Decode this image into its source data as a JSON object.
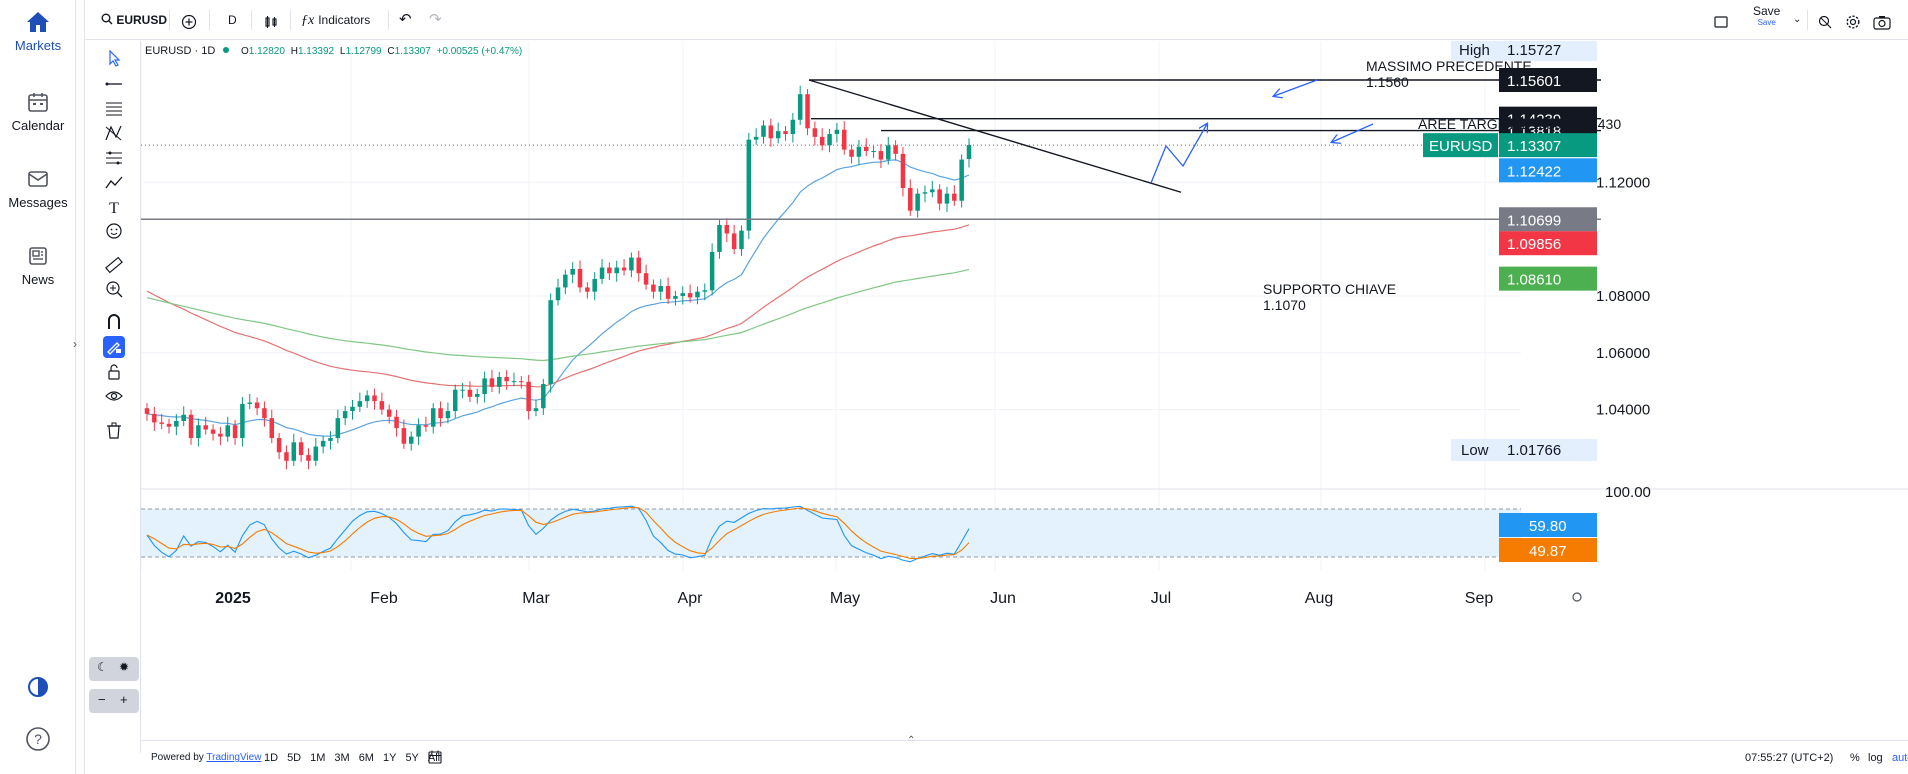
{
  "app_nav": {
    "items": [
      {
        "label": "Markets",
        "icon": "home-icon"
      },
      {
        "label": "Calendar",
        "icon": "calendar-icon"
      },
      {
        "label": "Messages",
        "icon": "mail-icon"
      },
      {
        "label": "News",
        "icon": "newspaper-icon"
      }
    ]
  },
  "toolbar": {
    "symbol": "EURUSD",
    "interval": "D",
    "indicators_label": "Indicators",
    "save_label": "Save",
    "save_sub": "Save"
  },
  "legend": {
    "title": "EURUSD · 1D",
    "open_label": "O",
    "open": "1.12820",
    "high_label": "H",
    "high": "1.13392",
    "low_label": "L",
    "low": "1.12799",
    "close_label": "C",
    "close": "1.13307",
    "change": "+0.00525 (+0.47%)"
  },
  "annotations": {
    "massimo_title": "MASSIMO PRECEDENTE",
    "massimo_value": "1.1560",
    "target_label": "AREE TARGET 1.1380  - 1.1430",
    "supporto_title": "SUPPORTO CHIAVE",
    "supporto_value": "1.1070"
  },
  "price_axis": {
    "ticks": [
      "1.12000",
      "1.08000",
      "1.06000",
      "1.04000"
    ],
    "high_label": "High",
    "high_value": "1.15727",
    "low_label": "Low",
    "low_value": "1.01766",
    "badges": [
      {
        "text": "1.15601",
        "bg": "#131722",
        "fg": "#ffffff"
      },
      {
        "text": "1.14239",
        "bg": "#131722",
        "fg": "#ffffff"
      },
      {
        "text": "1.13818",
        "bg": "#131722",
        "fg": "#ffffff"
      },
      {
        "text": "1.13307",
        "bg": "#089981",
        "fg": "#ffffff"
      },
      {
        "text": "1.12422",
        "bg": "#2196f3",
        "fg": "#ffffff"
      },
      {
        "text": "1.10699",
        "bg": "#787b86",
        "fg": "#ffffff"
      },
      {
        "text": "1.09856",
        "bg": "#f23645",
        "fg": "#ffffff"
      },
      {
        "text": "1.08610",
        "bg": "#4caf50",
        "fg": "#ffffff"
      }
    ],
    "symbol_badge": "EURUSD"
  },
  "oscillator": {
    "top_tick": "100.00",
    "k_value": "59.80",
    "d_value": "49.87",
    "k_color": "#2196f3",
    "d_color": "#f57c00"
  },
  "time_axis": {
    "labels": [
      "2025",
      "Feb",
      "Mar",
      "Apr",
      "May",
      "Jun",
      "Jul",
      "Aug",
      "Sep"
    ]
  },
  "bottom_bar": {
    "powered_prefix": "Powered by ",
    "powered_link": "TradingView",
    "ranges": [
      "1D",
      "5D",
      "1M",
      "3M",
      "6M",
      "1Y",
      "5Y",
      "All"
    ],
    "clock": "07:55:27 (UTC+2)",
    "percent": "%",
    "log": "log",
    "auto": "auto"
  },
  "colors": {
    "up": "#089981",
    "down": "#f23645",
    "ma_fast": "#5ba4e0",
    "ma_mid": "#e57373",
    "ma_slow": "#81c784",
    "accent": "#2962ff"
  },
  "chart_data": {
    "type": "candlestick",
    "symbol": "EURUSD",
    "interval": "1D",
    "ylim": [
      1.0,
      1.16
    ],
    "ohlc_last": {
      "open": 1.1282,
      "high": 1.13392,
      "low": 1.12799,
      "close": 1.13307
    },
    "closes": [
      1.0385,
      1.0355,
      1.035,
      1.034,
      1.036,
      1.0382,
      1.03,
      1.0345,
      1.033,
      1.0315,
      1.0305,
      1.0345,
      1.03,
      1.042,
      1.0425,
      1.0405,
      1.037,
      1.03,
      1.025,
      1.022,
      1.0285,
      1.024,
      1.022,
      1.027,
      1.029,
      1.03,
      1.037,
      1.0395,
      1.041,
      1.043,
      1.045,
      1.043,
      1.04,
      1.0375,
      1.0335,
      1.028,
      1.0305,
      1.0345,
      1.034,
      1.0405,
      1.037,
      1.0395,
      1.047,
      1.047,
      1.0445,
      1.0455,
      1.051,
      1.048,
      1.0515,
      1.05,
      1.05,
      1.0498,
      1.0395,
      1.0405,
      1.049,
      1.0785,
      1.083,
      1.0875,
      1.0895,
      1.083,
      1.0815,
      1.086,
      1.09,
      1.088,
      1.09,
      1.089,
      1.0935,
      1.088,
      1.084,
      1.0815,
      1.0835,
      1.079,
      1.08,
      1.081,
      1.0795,
      1.0815,
      1.082,
      1.0955,
      1.105,
      1.102,
      1.0965,
      1.103,
      1.135,
      1.136,
      1.14,
      1.1355,
      1.138,
      1.137,
      1.142,
      1.151,
      1.139,
      1.136,
      1.133,
      1.137,
      1.1385,
      1.1315,
      1.129,
      1.1325,
      1.131,
      1.131,
      1.128,
      1.133,
      1.13,
      1.118,
      1.11,
      1.116,
      1.1165,
      1.1175,
      1.1125,
      1.116,
      1.1135,
      1.128,
      1.1331
    ],
    "series": [
      {
        "name": "MA fast"
      },
      {
        "name": "MA mid"
      },
      {
        "name": "MA slow"
      }
    ],
    "levels": [
      1.156,
      1.1424,
      1.1382,
      1.107
    ],
    "target_zone": [
      1.138,
      1.143
    ],
    "support": 1.107,
    "x_labels": [
      "2025",
      "Feb",
      "Mar",
      "Apr",
      "May",
      "Jun",
      "Jul",
      "Aug",
      "Sep"
    ],
    "oscillator": {
      "k": 59.8,
      "d": 49.87
    }
  }
}
